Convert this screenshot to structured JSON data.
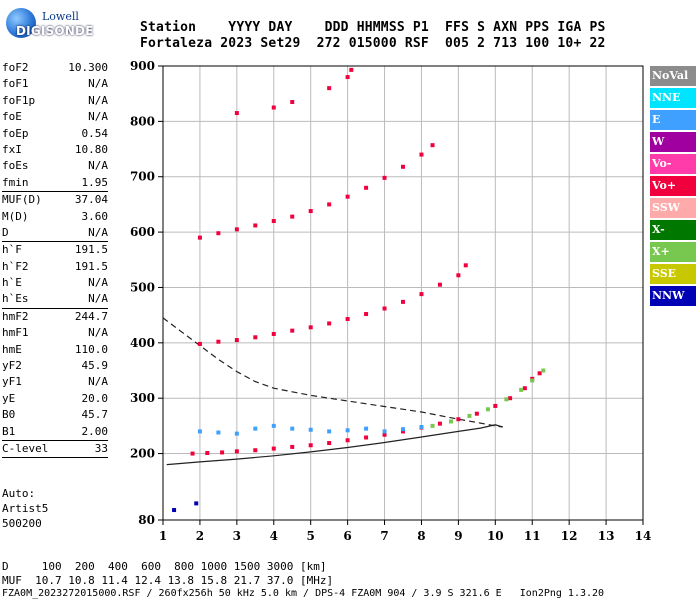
{
  "logo": {
    "line1": "Lowell",
    "line2": "DIGISONDE"
  },
  "header": {
    "line1": "Station    YYYY DAY    DDD HHMMSS P1  FFS S AXN PPS IGA PS",
    "line2": "Fortaleza 2023 Set29  272 015000 RSF  005 2 713 100 10+ 22"
  },
  "params": [
    {
      "k": "foF2",
      "v": "10.300"
    },
    {
      "k": "foF1",
      "v": "N/A"
    },
    {
      "k": "foF1p",
      "v": "N/A"
    },
    {
      "k": "foE",
      "v": "N/A"
    },
    {
      "k": "foEp",
      "v": "0.54"
    },
    {
      "k": "fxI",
      "v": "10.80"
    },
    {
      "k": "foEs",
      "v": "N/A"
    },
    {
      "k": "fmin",
      "v": "1.95",
      "sep": true
    },
    {
      "k": "MUF(D)",
      "v": "37.04"
    },
    {
      "k": "M(D)",
      "v": "3.60"
    },
    {
      "k": "D",
      "v": "N/A",
      "sep": true
    },
    {
      "k": "h`F",
      "v": "191.5"
    },
    {
      "k": "h`F2",
      "v": "191.5"
    },
    {
      "k": "h`E",
      "v": "N/A"
    },
    {
      "k": "h`Es",
      "v": "N/A",
      "sep": true
    },
    {
      "k": "hmF2",
      "v": "244.7"
    },
    {
      "k": "hmF1",
      "v": "N/A"
    },
    {
      "k": "hmE",
      "v": "110.0"
    },
    {
      "k": "yF2",
      "v": "45.9"
    },
    {
      "k": "yF1",
      "v": "N/A"
    },
    {
      "k": "yE",
      "v": "20.0"
    },
    {
      "k": "B0",
      "v": "45.7"
    },
    {
      "k": "B1",
      "v": "2.00",
      "sep": true
    },
    {
      "k": "C-level",
      "v": "33",
      "sep": true
    }
  ],
  "auto": {
    "line1": "Auto:",
    "line2": "Artist5",
    "line3": "500200"
  },
  "legend": [
    {
      "label": "NoVal",
      "color": "#8c8c8c"
    },
    {
      "label": "NNE",
      "color": "#00e5ff"
    },
    {
      "label": "E",
      "color": "#3fa0ff"
    },
    {
      "label": "W",
      "color": "#a000a0"
    },
    {
      "label": "Vo-",
      "color": "#ff3caa"
    },
    {
      "label": "Vo+",
      "color": "#f0003c"
    },
    {
      "label": "SSW",
      "color": "#ffaaaa"
    },
    {
      "label": "X-",
      "color": "#007800"
    },
    {
      "label": "X+",
      "color": "#78c850"
    },
    {
      "label": "SSE",
      "color": "#c8c800"
    },
    {
      "label": "NNW",
      "color": "#0000b4"
    }
  ],
  "footer": {
    "line1": "D     100  200  400  600  800 1000 1500 3000 [km]",
    "line2": "MUF  10.7 10.8 11.4 12.4 13.8 15.8 21.7 37.0 [MHz]",
    "line3": "FZA0M_2023272015000.RSF / 260fx256h 50 kHz 5.0 km / DPS-4 FZA0M 904 / 3.9 S 321.6 E   Ion2Png 1.3.20"
  },
  "chart_data": {
    "type": "scatter",
    "xlim": [
      1,
      14
    ],
    "ylim": [
      80,
      900
    ],
    "x_ticks": [
      1,
      2,
      3,
      4,
      5,
      6,
      7,
      8,
      9,
      10,
      11,
      12,
      13,
      14
    ],
    "y_ticks": [
      80,
      200,
      300,
      400,
      500,
      600,
      700,
      800,
      900
    ],
    "grid": true,
    "series": [
      {
        "name": "Vo+",
        "color": "#f0003c",
        "x": [
          1.8,
          2.2,
          2.6,
          3.0,
          3.5,
          4.0,
          4.5,
          5.0,
          5.5,
          6.0,
          6.5,
          7.0,
          7.5,
          8.0,
          8.5,
          9.0,
          9.5,
          10.0,
          10.4,
          10.8,
          11.0,
          11.2
        ],
        "y": [
          200,
          201,
          202,
          204,
          206,
          209,
          212,
          215,
          219,
          224,
          229,
          234,
          240,
          247,
          254,
          262,
          272,
          286,
          300,
          318,
          335,
          345
        ]
      },
      {
        "name": "X+",
        "color": "#78c850",
        "x": [
          8.3,
          8.8,
          9.3,
          9.8,
          10.3,
          10.7,
          11.0,
          11.3
        ],
        "y": [
          250,
          258,
          268,
          280,
          298,
          315,
          332,
          350
        ]
      },
      {
        "name": "E",
        "color": "#3fa0ff",
        "x": [
          2.0,
          2.5,
          3.0,
          3.5,
          4.0,
          4.5,
          5.0,
          5.5,
          6.0,
          6.5,
          7.0,
          7.5,
          8.0
        ],
        "y": [
          240,
          238,
          236,
          245,
          250,
          245,
          243,
          240,
          242,
          245,
          240,
          244,
          248
        ]
      },
      {
        "name": "Vo+",
        "color": "#f0003c",
        "x": [
          2.0,
          2.5,
          3.0,
          3.5,
          4.0,
          4.5,
          5.0,
          5.5,
          6.0,
          6.5,
          7.0,
          7.5,
          8.0,
          8.5,
          9.0,
          9.2
        ],
        "y": [
          398,
          402,
          405,
          410,
          416,
          422,
          428,
          435,
          443,
          452,
          462,
          474,
          488,
          505,
          522,
          540
        ]
      },
      {
        "name": "Vo+",
        "color": "#f0003c",
        "x": [
          2.0,
          2.5,
          3.0,
          3.5,
          4.0,
          4.5,
          5.0,
          5.5,
          6.0,
          6.5,
          7.0,
          7.5,
          8.0,
          8.3
        ],
        "y": [
          590,
          598,
          605,
          612,
          620,
          628,
          638,
          650,
          664,
          680,
          698,
          718,
          740,
          757
        ]
      },
      {
        "name": "Vo+",
        "color": "#f0003c",
        "x": [
          3.0,
          4.0,
          4.5,
          5.5,
          6.0,
          6.1
        ],
        "y": [
          815,
          825,
          835,
          860,
          880,
          893
        ]
      },
      {
        "name": "NNW",
        "color": "#0000b4",
        "x": [
          1.3,
          1.9
        ],
        "y": [
          98,
          110
        ]
      }
    ],
    "curves": [
      {
        "name": "solid-profile",
        "style": "solid",
        "x": [
          1.1,
          2.0,
          3.0,
          4.0,
          5.0,
          6.0,
          7.0,
          8.0,
          9.0,
          9.6,
          10.0,
          10.2
        ],
        "y": [
          180,
          185,
          190,
          196,
          203,
          211,
          220,
          230,
          240,
          246,
          252,
          248
        ]
      },
      {
        "name": "dashed-profile",
        "style": "dashed",
        "x": [
          1.0,
          1.5,
          2.0,
          2.5,
          3.0,
          3.5,
          4.0,
          5.0,
          6.0,
          7.0,
          8.0,
          9.0,
          9.6,
          10.0,
          10.2
        ],
        "y": [
          445,
          420,
          395,
          370,
          348,
          330,
          318,
          305,
          295,
          285,
          275,
          262,
          255,
          250,
          248
        ]
      }
    ]
  }
}
